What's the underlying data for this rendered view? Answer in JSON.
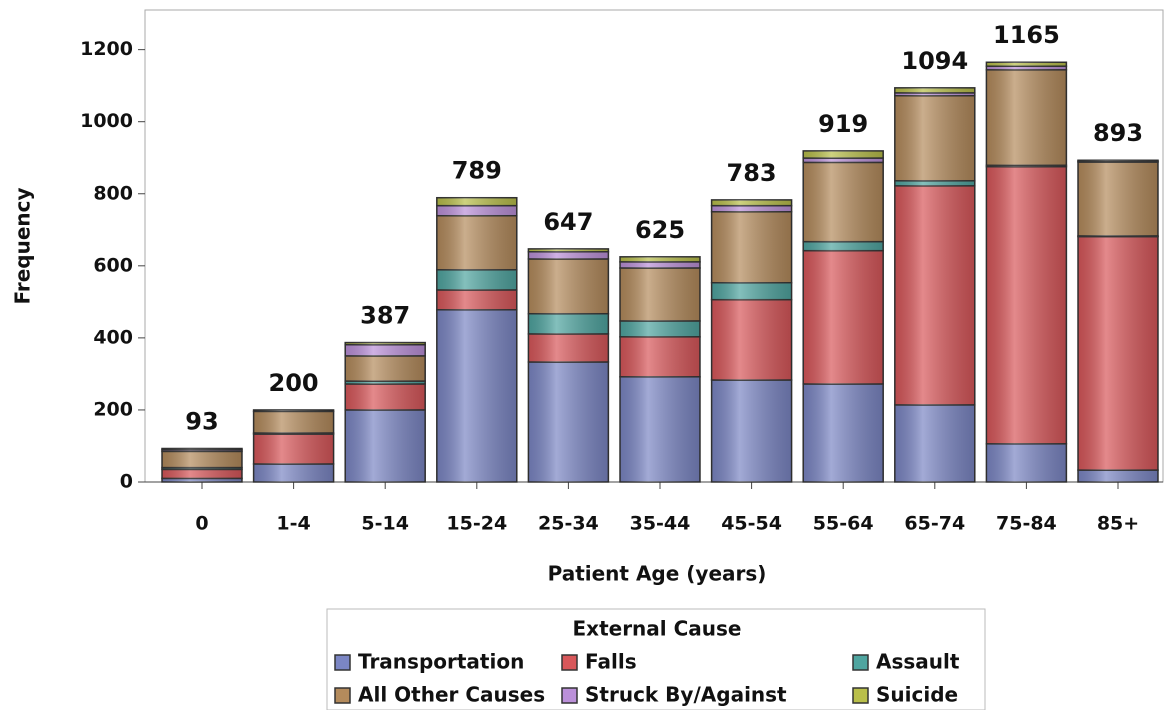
{
  "chart_data": {
    "type": "stacked_bar",
    "x_label": "Patient Age (years)",
    "y_label": "Frequency",
    "legend_title": "External Cause",
    "categories": [
      "0",
      "1-4",
      "5-14",
      "15-24",
      "25-34",
      "35-44",
      "45-54",
      "55-64",
      "65-74",
      "75-84",
      "85+"
    ],
    "totals": [
      93,
      200,
      387,
      789,
      647,
      625,
      783,
      919,
      1094,
      1165,
      893
    ],
    "series": [
      {
        "name": "Transportation",
        "color": "#7b86c4",
        "values": [
          10,
          50,
          200,
          478,
          333,
          292,
          283,
          272,
          214,
          106,
          33
        ]
      },
      {
        "name": "Falls",
        "color": "#d8575a",
        "values": [
          25,
          83,
          72,
          55,
          78,
          111,
          223,
          370,
          608,
          769,
          648
        ]
      },
      {
        "name": "Assault",
        "color": "#4fa5a0",
        "values": [
          5,
          3,
          8,
          56,
          56,
          44,
          47,
          25,
          14,
          4,
          2
        ]
      },
      {
        "name": "All Other Causes",
        "color": "#b48b5c",
        "values": [
          45,
          60,
          70,
          150,
          152,
          147,
          197,
          220,
          236,
          265,
          205
        ]
      },
      {
        "name": "Struck By/Against",
        "color": "#bb90d9",
        "values": [
          5,
          4,
          31,
          28,
          20,
          17,
          17,
          12,
          8,
          10,
          3
        ]
      },
      {
        "name": "Suicide",
        "color": "#b9bf4a",
        "values": [
          3,
          0,
          6,
          22,
          8,
          14,
          16,
          20,
          14,
          11,
          2
        ]
      }
    ],
    "ylim": [
      0,
      1310
    ],
    "yticks": [
      0,
      200,
      400,
      600,
      800,
      1000,
      1200
    ]
  }
}
